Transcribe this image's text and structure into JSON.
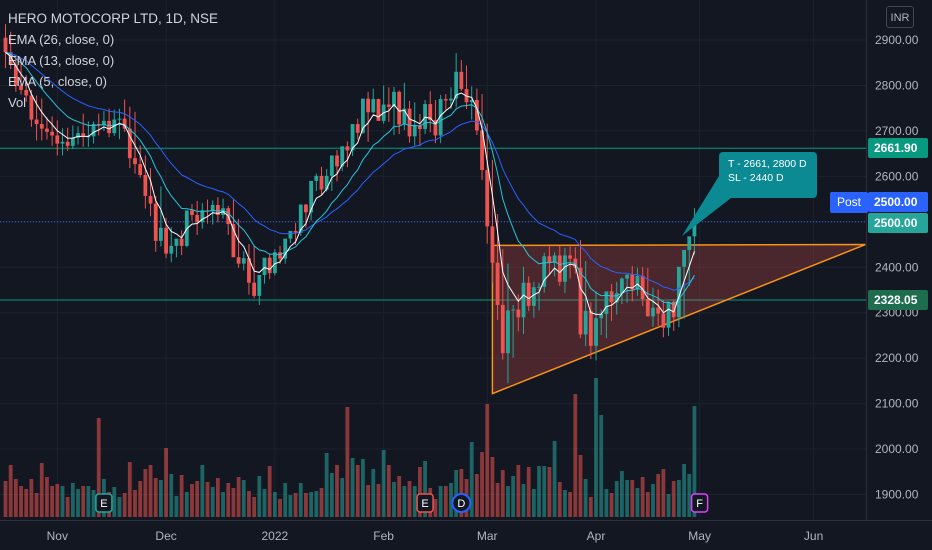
{
  "header": {
    "symbol_title": "HERO MOTOCORP LTD, 1D, NSE",
    "indicators": [
      "EMA (26, close, 0)",
      "EMA (13, close, 0)",
      "EMA (5, close, 0)",
      "Vol"
    ]
  },
  "currency_label": "INR",
  "post_label": "Post",
  "note": {
    "line1": "T - 2661, 2800 D",
    "line2": "SL - 2440 D"
  },
  "colors": {
    "background": "#131722",
    "up": "#26a69a",
    "down": "#ef5350",
    "ema26": "#2962ff",
    "ema13": "#26c6da",
    "ema5": "#ffffff",
    "triangle": "#f7931a",
    "level_line": "#089981",
    "note_bg": "#0b8a93"
  },
  "chart_data": {
    "type": "candlestick",
    "title": "HERO MOTOCORP LTD, 1D, NSE",
    "y_axis": {
      "ticks": [
        "2900.00",
        "2800.00",
        "2700.00",
        "2600.00",
        "2500.00",
        "2400.00",
        "2300.00",
        "2200.00",
        "2100.00",
        "2000.00",
        "1900.00"
      ],
      "range": [
        1870,
        2935
      ],
      "unit": "INR"
    },
    "x_axis": {
      "ticks": [
        {
          "label": "Nov",
          "i": 10
        },
        {
          "label": "Dec",
          "i": 31
        },
        {
          "label": "2022",
          "i": 52
        },
        {
          "label": "Feb",
          "i": 73
        },
        {
          "label": "Mar",
          "i": 93
        },
        {
          "label": "Apr",
          "i": 114
        },
        {
          "label": "May",
          "i": 134
        },
        {
          "label": "Jun",
          "i": 156
        }
      ],
      "range": [
        -1,
        167
      ]
    },
    "price_levels": [
      {
        "label": "2661.90",
        "value": 2661.9,
        "color": "#089981"
      },
      {
        "label": "2500.00",
        "value": 2500,
        "color": "#26a69a"
      },
      {
        "label": "2500.00",
        "value": 2500,
        "color": "#2962ff",
        "post": true
      },
      {
        "label": "2328.05",
        "value": 2328.05,
        "color": "#089981"
      }
    ],
    "horizontal_lines": [
      2661.9,
      2328.05
    ],
    "dotted_line": 2500,
    "triangle": {
      "points": [
        [
          94,
          2448
        ],
        [
          166,
          2450
        ],
        [
          94,
          2122
        ]
      ],
      "color": "#f7931a"
    },
    "events": [
      {
        "label": "E",
        "i": 19,
        "color": "#26a69a"
      },
      {
        "label": "E",
        "i": 81,
        "color": "#ef5350"
      },
      {
        "label": "D",
        "i": 88,
        "color": "#2962ff"
      },
      {
        "label": "F",
        "i": 134,
        "color": "#e040fb"
      }
    ],
    "candles": {
      "open": [
        2905,
        2873,
        2845,
        2800,
        2790,
        2778,
        2725,
        2715,
        2705,
        2698,
        2690,
        2672,
        2676,
        2667,
        2685,
        2695,
        2688,
        2688,
        2715,
        2713,
        2722,
        2695,
        2725,
        2727,
        2705,
        2640,
        2627,
        2603,
        2557,
        2540,
        2458,
        2487,
        2430,
        2447,
        2463,
        2447,
        2525,
        2515,
        2499,
        2525,
        2523,
        2537,
        2515,
        2530,
        2495,
        2422,
        2408,
        2420,
        2366,
        2337,
        2383,
        2421,
        2387,
        2433,
        2419,
        2463,
        2480,
        2476,
        2538,
        2521,
        2590,
        2601,
        2571,
        2601,
        2646,
        2622,
        2666,
        2657,
        2715,
        2696,
        2771,
        2741,
        2770,
        2722,
        2758,
        2753,
        2786,
        2714,
        2749,
        2688,
        2712,
        2704,
        2759,
        2724,
        2690,
        2770,
        2767,
        2771,
        2830,
        2792,
        2763,
        2768,
        2701,
        2614,
        2490,
        2410,
        2317,
        2211,
        2305,
        2307,
        2290,
        2366,
        2315,
        2356,
        2357,
        2424,
        2410,
        2426,
        2368,
        2426,
        2419,
        2399,
        2252,
        2304,
        2227,
        2288,
        2297,
        2347,
        2323,
        2343,
        2375,
        2384,
        2351,
        2381,
        2330,
        2292,
        2311,
        2298,
        2267,
        2324,
        2290,
        2401,
        2438,
        2468
      ],
      "high": [
        2935,
        2918,
        2868,
        2859,
        2822,
        2790,
        2778,
        2771,
        2730,
        2732,
        2723,
        2706,
        2707,
        2712,
        2710,
        2738,
        2721,
        2721,
        2738,
        2744,
        2749,
        2747,
        2749,
        2769,
        2753,
        2742,
        2668,
        2646,
        2618,
        2557,
        2578,
        2509,
        2488,
        2458,
        2481,
        2500,
        2539,
        2546,
        2541,
        2549,
        2547,
        2554,
        2551,
        2535,
        2549,
        2506,
        2435,
        2451,
        2447,
        2370,
        2412,
        2430,
        2440,
        2447,
        2449,
        2477,
        2498,
        2506,
        2539,
        2568,
        2606,
        2621,
        2616,
        2606,
        2658,
        2666,
        2677,
        2686,
        2727,
        2728,
        2786,
        2793,
        2771,
        2800,
        2796,
        2797,
        2789,
        2806,
        2766,
        2763,
        2737,
        2768,
        2787,
        2768,
        2779,
        2781,
        2796,
        2871,
        2856,
        2844,
        2798,
        2793,
        2781,
        2716,
        2636,
        2517,
        2440,
        2408,
        2317,
        2340,
        2401,
        2380,
        2368,
        2366,
        2432,
        2446,
        2433,
        2447,
        2443,
        2446,
        2444,
        2460,
        2414,
        2323,
        2347,
        2307,
        2318,
        2363,
        2368,
        2378,
        2384,
        2403,
        2399,
        2400,
        2398,
        2355,
        2351,
        2327,
        2317,
        2329,
        2335,
        2412,
        2442,
        2530
      ],
      "low": [
        2838,
        2836,
        2786,
        2780,
        2764,
        2709,
        2679,
        2679,
        2681,
        2667,
        2646,
        2646,
        2656,
        2660,
        2670,
        2665,
        2665,
        2672,
        2690,
        2700,
        2686,
        2689,
        2682,
        2698,
        2618,
        2606,
        2597,
        2529,
        2512,
        2434,
        2446,
        2420,
        2411,
        2422,
        2427,
        2444,
        2502,
        2471,
        2485,
        2496,
        2494,
        2499,
        2507,
        2471,
        2426,
        2399,
        2393,
        2340,
        2332,
        2317,
        2364,
        2374,
        2382,
        2407,
        2408,
        2453,
        2449,
        2469,
        2487,
        2503,
        2568,
        2559,
        2567,
        2568,
        2589,
        2612,
        2620,
        2645,
        2681,
        2693,
        2676,
        2739,
        2722,
        2716,
        2720,
        2691,
        2693,
        2702,
        2674,
        2668,
        2666,
        2693,
        2697,
        2673,
        2673,
        2747,
        2748,
        2752,
        2788,
        2748,
        2725,
        2691,
        2592,
        2452,
        2366,
        2284,
        2197,
        2145,
        2201,
        2259,
        2253,
        2304,
        2289,
        2305,
        2344,
        2383,
        2380,
        2359,
        2343,
        2375,
        2386,
        2244,
        2226,
        2198,
        2195,
        2251,
        2244,
        2282,
        2296,
        2319,
        2322,
        2325,
        2337,
        2315,
        2292,
        2269,
        2271,
        2246,
        2249,
        2260,
        2268,
        2287,
        2359,
        2428
      ],
      "close": [
        2873,
        2845,
        2800,
        2790,
        2778,
        2725,
        2715,
        2705,
        2698,
        2690,
        2672,
        2676,
        2667,
        2685,
        2695,
        2688,
        2688,
        2715,
        2713,
        2722,
        2695,
        2725,
        2727,
        2705,
        2640,
        2627,
        2603,
        2557,
        2540,
        2458,
        2487,
        2430,
        2447,
        2463,
        2447,
        2525,
        2515,
        2499,
        2525,
        2523,
        2537,
        2515,
        2530,
        2495,
        2422,
        2408,
        2420,
        2366,
        2337,
        2383,
        2421,
        2387,
        2433,
        2419,
        2463,
        2480,
        2476,
        2538,
        2521,
        2590,
        2601,
        2571,
        2601,
        2646,
        2622,
        2666,
        2657,
        2715,
        2696,
        2771,
        2741,
        2770,
        2722,
        2758,
        2753,
        2786,
        2714,
        2749,
        2688,
        2712,
        2704,
        2759,
        2724,
        2690,
        2770,
        2767,
        2771,
        2830,
        2792,
        2763,
        2768,
        2701,
        2614,
        2490,
        2410,
        2317,
        2211,
        2305,
        2307,
        2290,
        2366,
        2315,
        2356,
        2357,
        2424,
        2410,
        2426,
        2368,
        2426,
        2419,
        2399,
        2252,
        2304,
        2227,
        2288,
        2297,
        2347,
        2323,
        2343,
        2375,
        2384,
        2351,
        2381,
        2330,
        2292,
        2311,
        2298,
        2267,
        2324,
        2290,
        2401,
        2438,
        2468,
        2500
      ],
      "volume_scale": [
        36,
        52,
        38,
        31,
        28,
        38,
        24,
        54,
        40,
        31,
        33,
        31,
        20,
        34,
        28,
        31,
        31,
        27,
        99,
        38,
        25,
        30,
        20,
        24,
        55,
        27,
        36,
        48,
        52,
        39,
        37,
        69,
        43,
        21,
        42,
        25,
        33,
        36,
        52,
        35,
        30,
        39,
        25,
        34,
        29,
        40,
        37,
        26,
        20,
        41,
        28,
        51,
        25,
        18,
        34,
        22,
        24,
        34,
        24,
        25,
        26,
        29,
        64,
        44,
        52,
        39,
        110,
        59,
        52,
        58,
        32,
        48,
        33,
        67,
        52,
        35,
        41,
        31,
        36,
        31,
        50,
        56,
        29,
        18,
        31,
        31,
        34,
        47,
        48,
        38,
        75,
        43,
        65,
        113,
        60,
        34,
        47,
        31,
        41,
        52,
        33,
        50,
        28,
        51,
        51,
        50,
        76,
        35,
        27,
        25,
        123,
        62,
        38,
        20,
        139,
        102,
        28,
        24,
        36,
        46,
        37,
        37,
        29,
        40,
        25,
        33,
        43,
        48,
        23,
        36,
        37,
        53,
        43,
        111
      ]
    }
  }
}
